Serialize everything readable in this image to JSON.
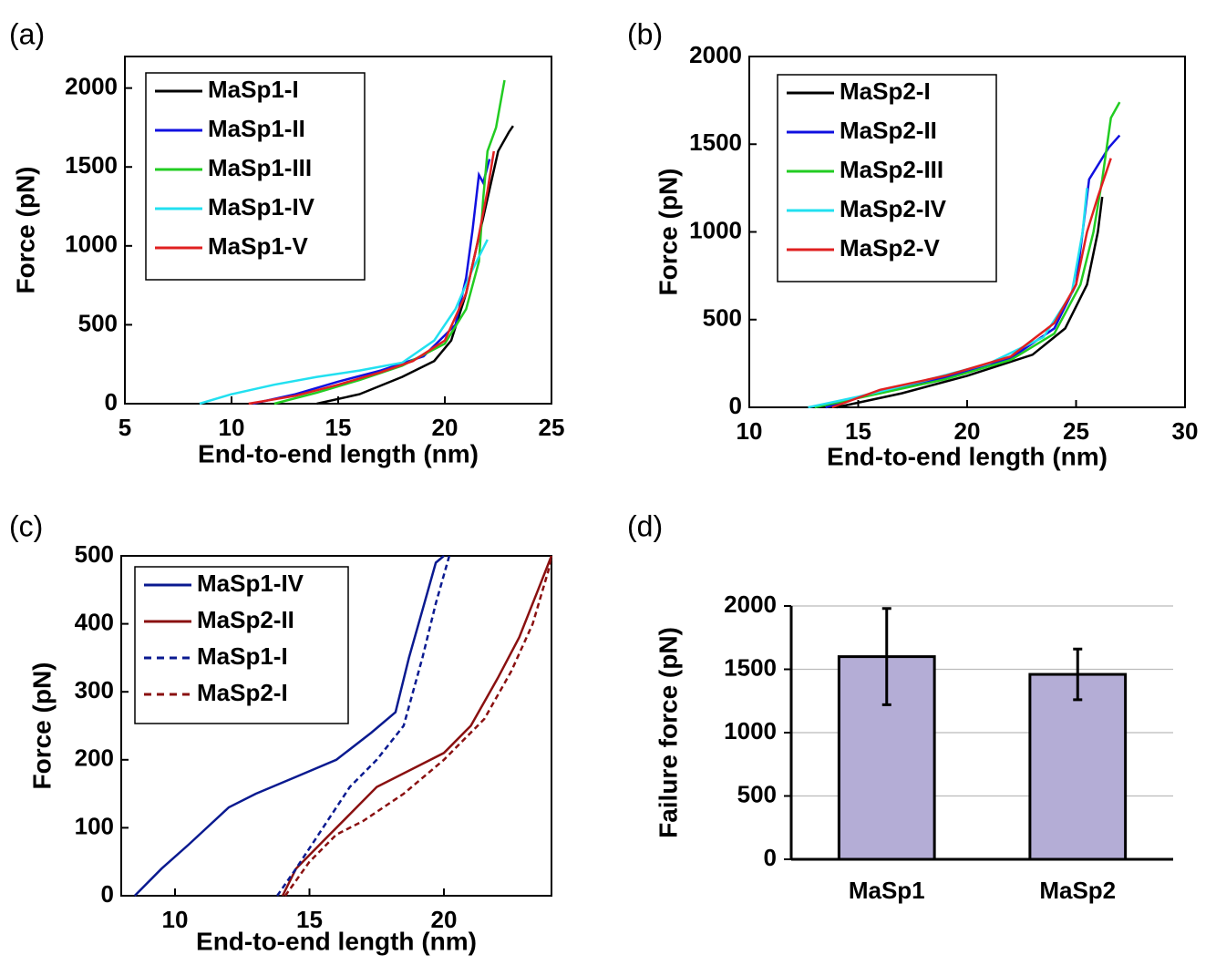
{
  "chart_data": [
    {
      "type": "line",
      "panel_label": "(a)",
      "x_label": "End-to-end length (nm)",
      "y_label": "Force (pN)",
      "xlim": [
        5,
        25
      ],
      "xticks": [
        5,
        10,
        15,
        20,
        25
      ],
      "ylim": [
        0,
        2200
      ],
      "yticks": [
        0,
        500,
        1000,
        1500,
        2000
      ],
      "legend": "upper left",
      "series": [
        {
          "name": "MaSp1-I",
          "color": "#000000",
          "linestyle": "solid",
          "x": [
            14,
            16,
            18,
            19.5,
            20.3,
            21,
            21.5,
            22,
            22.5,
            23,
            23.2
          ],
          "values": [
            0,
            60,
            170,
            270,
            400,
            700,
            1000,
            1300,
            1600,
            1720,
            1760
          ]
        },
        {
          "name": "MaSp1-II",
          "color": "#1010e0",
          "linestyle": "solid",
          "x": [
            11,
            13,
            15,
            17,
            19,
            20.5,
            21,
            21.3,
            21.6,
            21.8,
            22.1
          ],
          "values": [
            0,
            60,
            140,
            210,
            300,
            500,
            800,
            1100,
            1450,
            1400,
            1550
          ]
        },
        {
          "name": "MaSp1-III",
          "color": "#22cc22",
          "linestyle": "solid",
          "x": [
            12,
            14,
            16,
            18,
            20,
            21,
            21.6,
            21.8,
            22,
            22.4,
            22.8
          ],
          "values": [
            0,
            70,
            150,
            240,
            380,
            600,
            900,
            1300,
            1600,
            1750,
            2050
          ]
        },
        {
          "name": "MaSp1-IV",
          "color": "#22e0f0",
          "linestyle": "solid",
          "x": [
            8.5,
            10,
            12,
            14,
            16,
            18,
            19.5,
            20.5,
            21.3,
            22
          ],
          "values": [
            0,
            60,
            120,
            170,
            210,
            260,
            400,
            600,
            850,
            1040
          ]
        },
        {
          "name": "MaSp1-V",
          "color": "#e02020",
          "linestyle": "solid",
          "x": [
            10.8,
            13,
            15,
            17,
            18.5,
            20,
            21,
            21.5,
            22,
            22.3
          ],
          "values": [
            0,
            50,
            120,
            200,
            270,
            400,
            700,
            1000,
            1350,
            1600
          ]
        }
      ]
    },
    {
      "type": "line",
      "panel_label": "(b)",
      "x_label": "End-to-end length (nm)",
      "y_label": "Force (pN)",
      "xlim": [
        10,
        30
      ],
      "xticks": [
        10,
        15,
        20,
        25,
        30
      ],
      "ylim": [
        0,
        2000
      ],
      "yticks": [
        0,
        500,
        1000,
        1500,
        2000
      ],
      "legend": "upper left",
      "series": [
        {
          "name": "MaSp2-I",
          "color": "#000000",
          "linestyle": "solid",
          "x": [
            14,
            17,
            20,
            23,
            24.5,
            25.5,
            26,
            26.2
          ],
          "values": [
            0,
            80,
            180,
            300,
            450,
            700,
            1000,
            1200
          ]
        },
        {
          "name": "MaSp2-II",
          "color": "#1010e0",
          "linestyle": "solid",
          "x": [
            13.5,
            16,
            19,
            22,
            24,
            25,
            25.3,
            25.6,
            26.5,
            27
          ],
          "values": [
            0,
            90,
            170,
            280,
            450,
            700,
            1000,
            1300,
            1480,
            1550
          ]
        },
        {
          "name": "MaSp2-III",
          "color": "#22cc22",
          "linestyle": "solid",
          "x": [
            13,
            16,
            19,
            22,
            24,
            25.2,
            25.8,
            26.2,
            26.6,
            27
          ],
          "values": [
            0,
            80,
            160,
            270,
            420,
            700,
            1000,
            1300,
            1650,
            1740
          ]
        },
        {
          "name": "MaSp2-IV",
          "color": "#22e0f0",
          "linestyle": "solid",
          "x": [
            12.7,
            15,
            18,
            21,
            23.5,
            24.8,
            25.3,
            25.5
          ],
          "values": [
            0,
            60,
            150,
            250,
            400,
            650,
            1000,
            1250
          ]
        },
        {
          "name": "MaSp2-V",
          "color": "#e02020",
          "linestyle": "solid",
          "x": [
            13.8,
            16,
            19,
            22,
            24,
            25,
            25.5,
            26,
            26.6
          ],
          "values": [
            0,
            100,
            180,
            290,
            480,
            700,
            1000,
            1200,
            1420
          ]
        }
      ]
    },
    {
      "type": "line",
      "panel_label": "(c)",
      "x_label": "End-to-end length (nm)",
      "y_label": "Force (pN)",
      "xlim": [
        8,
        24
      ],
      "xticks": [
        10,
        15,
        20
      ],
      "ylim": [
        0,
        500
      ],
      "yticks": [
        0,
        100,
        200,
        300,
        400,
        500
      ],
      "legend": "upper left",
      "series": [
        {
          "name": "MaSp1-IV",
          "color": "#0a1a90",
          "linestyle": "solid",
          "x": [
            8.5,
            9.5,
            10.5,
            12,
            13,
            14.5,
            16,
            17.3,
            18.2,
            18.7,
            19.2,
            19.7,
            20
          ],
          "values": [
            0,
            40,
            75,
            130,
            150,
            175,
            200,
            240,
            270,
            350,
            420,
            490,
            500
          ]
        },
        {
          "name": "MaSp2-II",
          "color": "#8a1010",
          "linestyle": "solid",
          "x": [
            14,
            14.5,
            15.5,
            16.5,
            17.5,
            19,
            20,
            21,
            22,
            22.8,
            23.5,
            24
          ],
          "values": [
            0,
            40,
            80,
            120,
            160,
            190,
            210,
            250,
            320,
            380,
            450,
            500
          ]
        },
        {
          "name": "MaSp1-I",
          "color": "#0a1a90",
          "linestyle": "dashed",
          "x": [
            13.8,
            14.5,
            15.5,
            16.5,
            17.5,
            18.5,
            19.2,
            19.7,
            20.2
          ],
          "values": [
            0,
            40,
            100,
            160,
            200,
            250,
            350,
            430,
            500
          ]
        },
        {
          "name": "MaSp2-I",
          "color": "#8a1010",
          "linestyle": "dashed",
          "x": [
            14.1,
            15,
            16,
            17,
            18.5,
            20,
            21.5,
            22.5,
            23.3,
            23.9,
            24
          ],
          "values": [
            0,
            50,
            90,
            110,
            150,
            200,
            260,
            330,
            400,
            480,
            500
          ]
        }
      ]
    },
    {
      "type": "bar",
      "panel_label": "(d)",
      "y_label": "Failure force (pN)",
      "categories": [
        "MaSp1",
        "MaSp2"
      ],
      "values": [
        1600,
        1460
      ],
      "errors": [
        380,
        200
      ],
      "color": "#b4add6",
      "ylim": [
        0,
        2000
      ],
      "yticks": [
        0,
        500,
        1000,
        1500,
        2000
      ],
      "grid": true
    }
  ]
}
